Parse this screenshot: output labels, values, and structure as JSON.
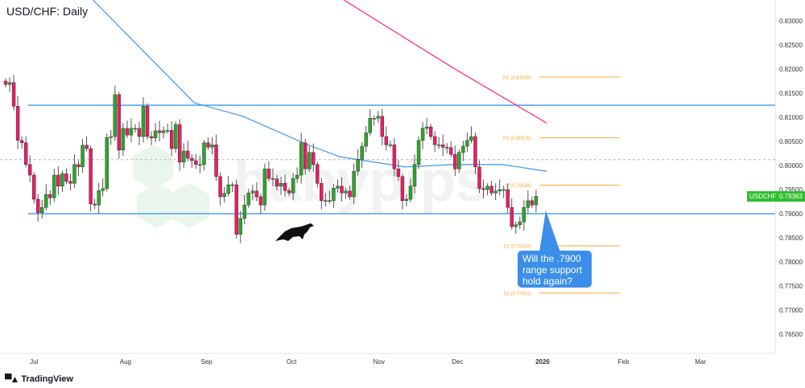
{
  "title": "USD/CHF: Daily",
  "branding": "TradingView",
  "watermark": "babypips",
  "annotation": "Will the .7900 range support hold again?",
  "last_price": {
    "symbol": "USDCHF",
    "value": "0.79363",
    "color": "#2fbf2f"
  },
  "colors": {
    "up": "#2ea52e",
    "down": "#e91e63",
    "sma_fast": "#4a9ff0",
    "sma_slow": "#ff2e8a",
    "pivot": "#f7a93b",
    "range": "#4a9ff0",
    "callout": "#3b8fea"
  },
  "chart_data": {
    "type": "candlestick",
    "title": "USD/CHF: Daily",
    "ylim": [
      0.762,
      0.834
    ],
    "y_ticks": [
      "0.83000",
      "0.82500",
      "0.82000",
      "0.81500",
      "0.81000",
      "0.80500",
      "0.80000",
      "0.79500",
      "0.79000",
      "0.78500",
      "0.78000",
      "0.77500",
      "0.77000",
      "0.76500"
    ],
    "x_ticks": [
      {
        "label": "Jul",
        "index": 7,
        "bold": false
      },
      {
        "label": "Aug",
        "index": 29.6,
        "bold": false
      },
      {
        "label": "Sep",
        "index": 49.6,
        "bold": false
      },
      {
        "label": "Oct",
        "index": 70.6,
        "bold": false
      },
      {
        "label": "Nov",
        "index": 92.2,
        "bold": false
      },
      {
        "label": "Dec",
        "index": 111.6,
        "bold": false
      },
      {
        "label": "2026",
        "index": 132.6,
        "bold": true
      },
      {
        "label": "Feb",
        "index": 152.6,
        "bold": false
      },
      {
        "label": "Mar",
        "index": 171.6,
        "bold": false
      }
    ],
    "first_open": 0.8175,
    "closes": [
      0.8168,
      0.8172,
      0.8123,
      0.8052,
      0.8047,
      0.8002,
      0.798,
      0.793,
      0.7902,
      0.7913,
      0.794,
      0.7933,
      0.798,
      0.7957,
      0.7983,
      0.7967,
      0.7963,
      0.8002,
      0.7997,
      0.8042,
      0.8035,
      0.792,
      0.7918,
      0.7948,
      0.7952,
      0.8058,
      0.806,
      0.8147,
      0.8032,
      0.8077,
      0.8063,
      0.8077,
      0.8077,
      0.806,
      0.8123,
      0.806,
      0.8057,
      0.8072,
      0.8068,
      0.8072,
      0.8073,
      0.8035,
      0.8085,
      0.8007,
      0.803,
      0.8015,
      0.801,
      0.8002,
      0.8002,
      0.8047,
      0.8038,
      0.8043,
      0.7977,
      0.7935,
      0.7942,
      0.796,
      0.796,
      0.7857,
      0.789,
      0.7918,
      0.7943,
      0.7947,
      0.7935,
      0.7918,
      0.7993,
      0.7973,
      0.7972,
      0.7957,
      0.7963,
      0.7948,
      0.7943,
      0.7973,
      0.798,
      0.8047,
      0.7993,
      0.8027,
      0.8002,
      0.7963,
      0.7927,
      0.7927,
      0.7927,
      0.7953,
      0.7957,
      0.7943,
      0.7947,
      0.7935,
      0.7988,
      0.8013,
      0.804,
      0.8068,
      0.8098,
      0.8098,
      0.8102,
      0.806,
      0.8043,
      0.8043,
      0.7993,
      0.7977,
      0.7927,
      0.793,
      0.7957,
      0.8002,
      0.8052,
      0.8077,
      0.808,
      0.806,
      0.8043,
      0.8043,
      0.8038,
      0.8037,
      0.8023,
      0.7993,
      0.8027,
      0.804,
      0.8052,
      0.806,
      0.7997,
      0.7952,
      0.795,
      0.7957,
      0.7943,
      0.7947,
      0.795,
      0.795,
      0.7913,
      0.7873,
      0.7877,
      0.7883,
      0.7913,
      0.7927,
      0.7918,
      0.79363
    ],
    "sma_fast": [
      [
        21.6,
        0.8343
      ],
      [
        46.6,
        0.813
      ],
      [
        58.6,
        0.8102
      ],
      [
        74.6,
        0.8043
      ],
      [
        82.6,
        0.8018
      ],
      [
        98.6,
        0.7997
      ],
      [
        110.6,
        0.8002
      ],
      [
        122.6,
        0.8002
      ],
      [
        133.6,
        0.7988
      ]
    ],
    "sma_slow": [
      [
        83.6,
        0.8343
      ],
      [
        110.6,
        0.8202
      ],
      [
        133.6,
        0.8088
      ]
    ],
    "horizontal_levels": {
      "range_top": 0.8125,
      "range_bottom": 0.79,
      "dashed": 0.8012
    },
    "pivots": [
      {
        "label": "R2 (0.81836)",
        "value": 0.81836
      },
      {
        "label": "R1 (0.80575)",
        "value": 0.80575
      },
      {
        "label": "P (0.79594)",
        "value": 0.79594
      },
      {
        "label": "S1 (0.78333)",
        "value": 0.78333
      },
      {
        "label": "S2 (0.77352)",
        "value": 0.77352
      }
    ]
  }
}
